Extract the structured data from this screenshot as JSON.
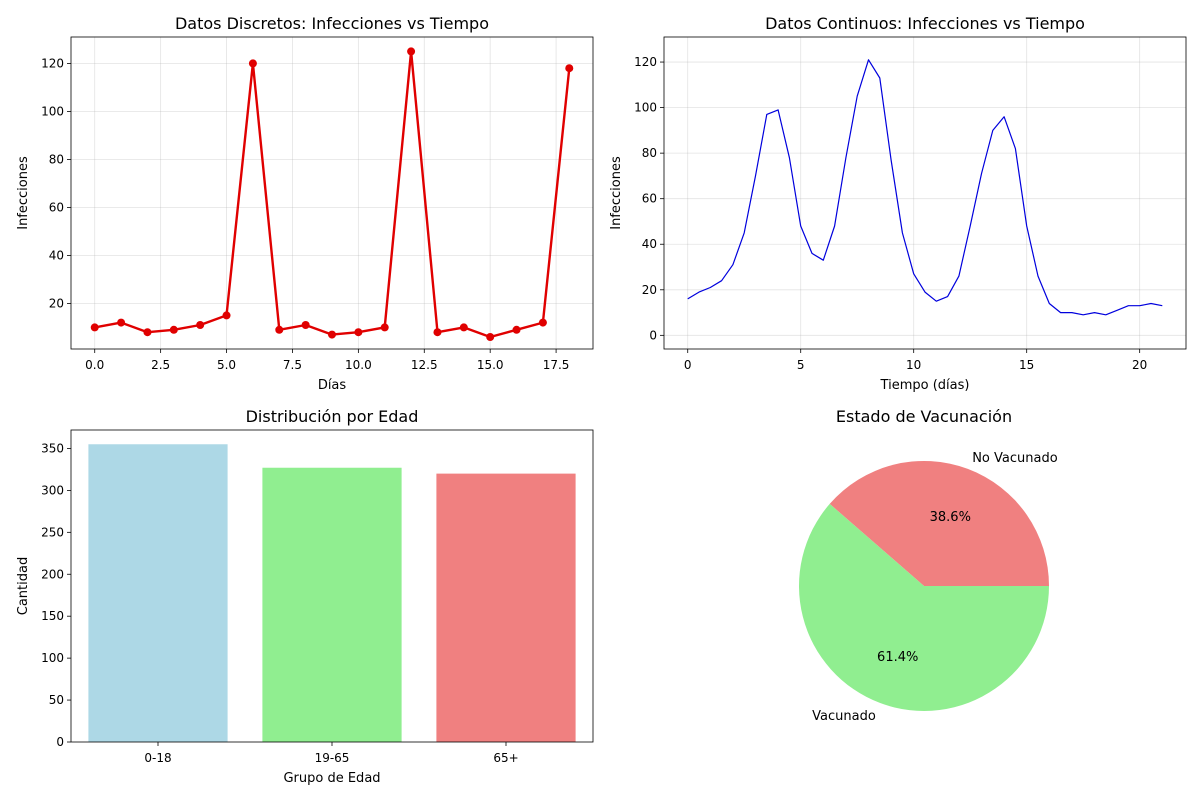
{
  "chart_data": [
    {
      "type": "line",
      "title": "Datos Discretos: Infecciones vs Tiempo",
      "xlabel": "Días",
      "ylabel": "Infecciones",
      "xlim": [
        -0.9,
        18.9
      ],
      "ylim": [
        1,
        131
      ],
      "xticks": [
        0,
        2.5,
        5,
        7.5,
        10,
        12.5,
        15,
        17.5
      ],
      "xtick_labels": [
        "0.0",
        "2.5",
        "5.0",
        "7.5",
        "10.0",
        "12.5",
        "15.0",
        "17.5"
      ],
      "yticks": [
        20,
        40,
        60,
        80,
        100,
        120
      ],
      "grid": true,
      "markers": true,
      "color": "#e00000",
      "x": [
        0,
        1,
        2,
        3,
        4,
        5,
        6,
        7,
        8,
        9,
        10,
        11,
        12,
        13,
        14,
        15,
        16,
        17,
        18
      ],
      "y": [
        10,
        12,
        8,
        9,
        11,
        15,
        120,
        9,
        11,
        7,
        8,
        10,
        125,
        8,
        10,
        6,
        9,
        12,
        118
      ]
    },
    {
      "type": "line",
      "title": "Datos Continuos: Infecciones vs Tiempo",
      "xlabel": "Tiempo (días)",
      "ylabel": "Infecciones",
      "xlim": [
        -1.05,
        22.05
      ],
      "ylim": [
        -6,
        131
      ],
      "xticks": [
        0,
        5,
        10,
        15,
        20
      ],
      "xtick_labels": [
        "0",
        "5",
        "10",
        "15",
        "20"
      ],
      "yticks": [
        0,
        20,
        40,
        60,
        80,
        100,
        120
      ],
      "grid": true,
      "color": "#0000dd",
      "x": [
        0,
        0.5,
        1,
        1.5,
        2,
        2.5,
        3,
        3.5,
        4,
        4.5,
        5,
        5.5,
        6,
        6.5,
        7,
        7.5,
        8,
        8.5,
        9,
        9.5,
        10,
        10.5,
        11,
        11.5,
        12,
        12.5,
        13,
        13.5,
        14,
        14.5,
        15,
        15.5,
        16,
        16.5,
        17,
        17.5,
        18,
        18.5,
        19,
        19.5,
        20,
        20.5,
        21
      ],
      "y": [
        16,
        19,
        21,
        24,
        31,
        45,
        70,
        97,
        99,
        78,
        48,
        36,
        33,
        48,
        78,
        105,
        121,
        113,
        77,
        45,
        27,
        19,
        15,
        17,
        26,
        48,
        71,
        90,
        96,
        82,
        48,
        26,
        14,
        10,
        10,
        9,
        10,
        9,
        11,
        13,
        13,
        14,
        13
      ]
    },
    {
      "type": "bar",
      "title": "Distribución por Edad",
      "xlabel": "Grupo de Edad",
      "ylabel": "Cantidad",
      "ylim": [
        0,
        372
      ],
      "yticks": [
        0,
        50,
        100,
        150,
        200,
        250,
        300,
        350
      ],
      "grid": false,
      "categories": [
        "0-18",
        "19-65",
        "65+"
      ],
      "values": [
        355,
        327,
        320
      ],
      "colors": [
        "#add8e6",
        "#90ee90",
        "#f08080"
      ]
    },
    {
      "type": "pie",
      "title": "Estado de Vacunación",
      "labels": [
        "No Vacunado",
        "Vacunado"
      ],
      "values": [
        38.6,
        61.4
      ],
      "pct_labels": [
        "38.6%",
        "61.4%"
      ],
      "colors": [
        "#f08080",
        "#90ee90"
      ]
    }
  ]
}
